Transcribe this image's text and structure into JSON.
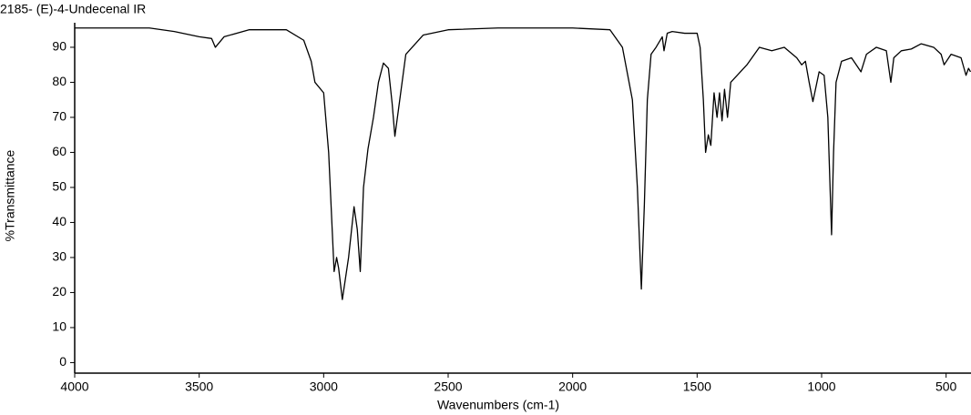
{
  "chart_data": {
    "type": "line",
    "title": "2185- (E)-4-Undecenal IR",
    "x_label": "Wavenumbers (cm-1)",
    "y_label": "%Transmittance",
    "xlim": [
      4000,
      400
    ],
    "ylim": [
      -3,
      97
    ],
    "xticks": [
      4000,
      3500,
      3000,
      2500,
      2000,
      1500,
      1000,
      500
    ],
    "yticks": [
      0,
      10,
      20,
      30,
      40,
      50,
      60,
      70,
      80,
      90
    ],
    "x": [
      4000,
      3700,
      3600,
      3500,
      3450,
      3435,
      3400,
      3300,
      3150,
      3080,
      3050,
      3035,
      3000,
      2980,
      2958,
      2948,
      2940,
      2925,
      2900,
      2878,
      2865,
      2853,
      2840,
      2822,
      2800,
      2780,
      2760,
      2740,
      2725,
      2714,
      2700,
      2670,
      2600,
      2500,
      2300,
      2000,
      1850,
      1800,
      1760,
      1740,
      1724,
      1712,
      1700,
      1685,
      1665,
      1640,
      1633,
      1620,
      1600,
      1550,
      1500,
      1488,
      1475,
      1466,
      1455,
      1445,
      1432,
      1420,
      1410,
      1400,
      1390,
      1378,
      1365,
      1300,
      1250,
      1200,
      1150,
      1100,
      1080,
      1065,
      1050,
      1035,
      1010,
      990,
      975,
      960,
      952,
      942,
      920,
      880,
      842,
      820,
      780,
      740,
      722,
      710,
      680,
      640,
      600,
      550,
      520,
      508,
      480,
      440,
      420,
      410,
      402
    ],
    "series": [
      {
        "name": "(E)-4-Undecenal",
        "color": "#000000",
        "values": [
          95.5,
          95.5,
          94.5,
          93,
          92.5,
          90,
          93,
          95,
          95,
          92,
          86,
          80,
          77,
          60,
          26,
          30,
          27,
          18,
          30,
          44.5,
          38,
          26,
          50,
          61,
          70,
          80,
          85.5,
          84,
          74,
          64.6,
          72,
          88,
          93.5,
          95,
          95.5,
          95.5,
          95,
          90,
          75,
          50,
          21,
          45,
          75,
          88,
          90,
          93,
          89,
          94,
          94.5,
          94,
          94,
          90,
          75,
          60,
          65,
          62,
          77,
          70,
          77,
          69,
          78,
          70,
          80,
          85,
          90,
          89,
          90,
          87,
          85,
          86,
          80,
          74.5,
          83,
          82,
          70,
          36.5,
          60,
          80,
          86,
          87,
          83,
          88,
          90,
          89,
          80,
          87,
          89,
          89.5,
          91,
          90,
          88,
          85,
          88,
          87,
          82,
          84,
          83
        ]
      }
    ]
  }
}
